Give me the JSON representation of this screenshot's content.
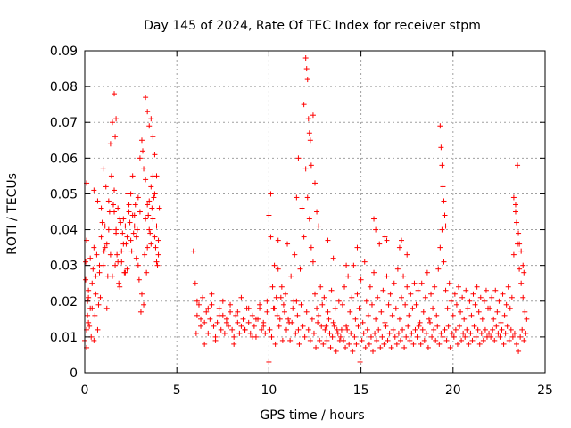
{
  "chart_data": {
    "type": "scatter",
    "title": "Day 145 of 2024, Rate Of TEC Index for receiver stpm",
    "xlabel": "GPS time / hours",
    "ylabel": "ROTI / TECUs",
    "xlim": [
      0,
      25
    ],
    "ylim": [
      0,
      0.09
    ],
    "xticks": [
      0,
      5,
      10,
      15,
      20,
      25
    ],
    "xtick_labels": [
      "0",
      "5",
      "10",
      "15",
      "20",
      "25"
    ],
    "yticks": [
      0,
      0.01,
      0.02,
      0.03,
      0.04,
      0.05,
      0.06,
      0.07,
      0.08,
      0.09
    ],
    "ytick_labels": [
      "0",
      "0.01",
      "0.02",
      "0.03",
      "0.04",
      "0.05",
      "0.06",
      "0.07",
      "0.08",
      "0.09"
    ],
    "grid": true,
    "marker": "+",
    "color": "#ff0000",
    "series": [
      {
        "name": "ROTI",
        "x": [
          0.0,
          0.05,
          0.1,
          0.15,
          0.2,
          0.25,
          0.3,
          0.4,
          0.5,
          0.6,
          0.7,
          0.8,
          0.9,
          1.0,
          1.1,
          1.2,
          1.3,
          1.4,
          1.5,
          1.6,
          1.7,
          1.8,
          1.9,
          2.0,
          2.1,
          2.2,
          2.3,
          2.4,
          2.5,
          2.6,
          2.7,
          2.8,
          2.9,
          3.0,
          3.1,
          3.2,
          3.3,
          3.4,
          3.5,
          3.6,
          3.7,
          3.8,
          3.9,
          4.0,
          4.05,
          0.05,
          0.1,
          0.15,
          0.2,
          0.3,
          0.4,
          0.5,
          0.6,
          0.7,
          0.8,
          0.9,
          1.0,
          1.1,
          1.2,
          1.3,
          1.4,
          1.5,
          1.6,
          1.7,
          1.8,
          1.9,
          2.0,
          2.1,
          2.2,
          2.3,
          2.4,
          2.5,
          2.6,
          2.7,
          2.8,
          2.9,
          3.0,
          3.1,
          3.2,
          3.3,
          3.4,
          3.5,
          3.6,
          3.7,
          3.8,
          3.9,
          4.0,
          0.1,
          0.2,
          0.35,
          0.45,
          0.55,
          0.65,
          0.75,
          0.85,
          0.95,
          1.05,
          1.15,
          1.25,
          1.35,
          1.45,
          1.55,
          1.65,
          1.75,
          1.85,
          1.95,
          2.05,
          2.15,
          2.25,
          2.35,
          2.45,
          2.55,
          2.65,
          2.75,
          2.85,
          2.95,
          3.05,
          3.15,
          3.25,
          3.35,
          3.45,
          3.55,
          3.65,
          3.75,
          3.85,
          3.95,
          0.1,
          0.5,
          1.6,
          1.65,
          1.7,
          3.3,
          3.4,
          3.5,
          3.6,
          3.7,
          3.8,
          3.9,
          5.9,
          6.0,
          6.05,
          6.1,
          6.2,
          6.3,
          6.4,
          6.5,
          6.6,
          6.7,
          6.8,
          6.9,
          7.0,
          7.1,
          7.2,
          7.3,
          7.4,
          7.5,
          7.6,
          7.7,
          7.8,
          7.9,
          8.0,
          8.1,
          8.2,
          8.3,
          8.4,
          8.5,
          8.6,
          8.7,
          8.8,
          8.9,
          9.0,
          9.1,
          9.2,
          9.3,
          9.4,
          9.5,
          9.6,
          9.7,
          9.8,
          9.9,
          6.1,
          6.3,
          6.5,
          6.7,
          6.9,
          7.1,
          7.3,
          7.5,
          7.7,
          7.9,
          8.1,
          8.3,
          8.5,
          8.7,
          8.9,
          9.1,
          9.3,
          9.5,
          9.7,
          9.9,
          10.0,
          10.1,
          10.2,
          10.3,
          10.4,
          10.5,
          10.6,
          10.7,
          10.8,
          10.9,
          11.0,
          11.1,
          11.2,
          11.3,
          11.4,
          11.5,
          11.6,
          11.7,
          11.8,
          11.9,
          12.0,
          12.1,
          12.2,
          12.3,
          12.4,
          12.5,
          12.6,
          12.7,
          12.8,
          12.9,
          13.0,
          13.1,
          13.2,
          13.3,
          13.4,
          13.5,
          13.6,
          13.7,
          13.8,
          13.9,
          10.05,
          10.15,
          10.25,
          10.35,
          10.45,
          10.55,
          10.65,
          10.75,
          10.85,
          10.95,
          11.05,
          11.15,
          11.25,
          11.35,
          11.45,
          11.55,
          11.65,
          11.75,
          11.85,
          11.95,
          12.05,
          12.15,
          12.25,
          12.35,
          12.45,
          12.55,
          12.65,
          12.75,
          12.85,
          12.95,
          13.05,
          13.15,
          13.25,
          13.35,
          13.45,
          13.55,
          13.65,
          13.75,
          13.85,
          13.95,
          10.0,
          10.1,
          10.3,
          10.5,
          11.5,
          11.6,
          11.9,
          12.0,
          12.05,
          12.1,
          12.15,
          12.2,
          12.25,
          12.3,
          12.4,
          12.5,
          12.6,
          12.7,
          13.2,
          13.5,
          14.0,
          14.1,
          14.2,
          14.3,
          14.4,
          14.5,
          14.6,
          14.7,
          14.8,
          14.9,
          15.0,
          15.1,
          15.2,
          15.3,
          15.4,
          15.5,
          15.6,
          15.7,
          15.8,
          15.9,
          16.0,
          16.1,
          16.2,
          16.3,
          16.4,
          16.5,
          16.6,
          16.7,
          16.8,
          16.9,
          17.0,
          17.1,
          17.2,
          17.3,
          17.4,
          17.5,
          17.6,
          17.7,
          17.8,
          17.9,
          14.05,
          14.15,
          14.25,
          14.35,
          14.45,
          14.55,
          14.65,
          14.75,
          14.85,
          14.95,
          15.05,
          15.15,
          15.25,
          15.35,
          15.45,
          15.55,
          15.65,
          15.75,
          15.85,
          15.95,
          16.05,
          16.15,
          16.25,
          16.35,
          16.45,
          16.55,
          16.65,
          16.75,
          16.85,
          16.95,
          17.05,
          17.15,
          17.25,
          17.35,
          17.45,
          17.55,
          17.65,
          17.75,
          17.85,
          17.95,
          14.2,
          14.8,
          15.7,
          15.8,
          16.3,
          16.4,
          17.1,
          17.2,
          17.5,
          18.0,
          18.1,
          18.2,
          18.3,
          18.4,
          18.5,
          18.6,
          18.7,
          18.8,
          18.9,
          19.0,
          19.1,
          19.2,
          19.3,
          19.4,
          19.5,
          19.6,
          19.7,
          19.8,
          19.9,
          20.0,
          20.1,
          20.2,
          20.3,
          20.4,
          20.5,
          20.6,
          20.7,
          20.8,
          20.9,
          21.0,
          21.1,
          21.2,
          21.3,
          21.4,
          21.5,
          21.6,
          21.7,
          21.8,
          21.9,
          18.05,
          18.15,
          18.25,
          18.35,
          18.45,
          18.55,
          18.65,
          18.75,
          18.85,
          18.95,
          19.05,
          19.15,
          19.25,
          19.35,
          19.45,
          19.55,
          19.65,
          19.75,
          19.85,
          19.95,
          20.05,
          20.15,
          20.25,
          20.35,
          20.45,
          20.55,
          20.65,
          20.75,
          20.85,
          20.95,
          21.05,
          21.15,
          21.25,
          21.35,
          21.45,
          21.55,
          21.65,
          21.75,
          21.85,
          21.95,
          19.3,
          19.35,
          19.4,
          19.45,
          19.5,
          19.55,
          19.6,
          22.0,
          22.1,
          22.2,
          22.3,
          22.4,
          22.5,
          22.6,
          22.7,
          22.8,
          22.9,
          23.0,
          23.1,
          23.2,
          23.3,
          23.4,
          23.5,
          23.6,
          23.7,
          23.8,
          23.9,
          24.0,
          22.05,
          22.15,
          22.25,
          22.35,
          22.45,
          22.55,
          22.65,
          22.75,
          22.85,
          22.95,
          23.05,
          23.15,
          23.25,
          23.35,
          23.45,
          23.55,
          23.65,
          23.75,
          23.85,
          23.95,
          23.3,
          23.4,
          23.45,
          23.5,
          23.55,
          23.6,
          23.7,
          23.8,
          23.85
        ],
        "y": [
          0.009,
          0.031,
          0.053,
          0.016,
          0.021,
          0.013,
          0.018,
          0.025,
          0.035,
          0.027,
          0.048,
          0.03,
          0.046,
          0.057,
          0.041,
          0.036,
          0.048,
          0.064,
          0.07,
          0.045,
          0.04,
          0.031,
          0.043,
          0.034,
          0.036,
          0.041,
          0.029,
          0.045,
          0.05,
          0.055,
          0.044,
          0.038,
          0.049,
          0.06,
          0.065,
          0.057,
          0.043,
          0.035,
          0.048,
          0.052,
          0.055,
          0.05,
          0.041,
          0.033,
          0.046,
          0.026,
          0.007,
          0.02,
          0.014,
          0.032,
          0.018,
          0.009,
          0.022,
          0.012,
          0.028,
          0.038,
          0.03,
          0.035,
          0.018,
          0.04,
          0.033,
          0.027,
          0.051,
          0.039,
          0.046,
          0.024,
          0.031,
          0.043,
          0.028,
          0.038,
          0.047,
          0.037,
          0.044,
          0.041,
          0.032,
          0.03,
          0.045,
          0.022,
          0.019,
          0.054,
          0.047,
          0.04,
          0.036,
          0.043,
          0.038,
          0.031,
          0.037,
          0.012,
          0.023,
          0.01,
          0.029,
          0.016,
          0.033,
          0.019,
          0.021,
          0.042,
          0.034,
          0.052,
          0.027,
          0.045,
          0.055,
          0.047,
          0.03,
          0.033,
          0.025,
          0.042,
          0.039,
          0.028,
          0.036,
          0.05,
          0.042,
          0.034,
          0.039,
          0.047,
          0.04,
          0.026,
          0.017,
          0.062,
          0.033,
          0.028,
          0.044,
          0.039,
          0.046,
          0.049,
          0.035,
          0.03,
          0.037,
          0.051,
          0.078,
          0.066,
          0.071,
          0.077,
          0.073,
          0.069,
          0.071,
          0.066,
          0.061,
          0.055,
          0.034,
          0.025,
          0.011,
          0.016,
          0.019,
          0.013,
          0.021,
          0.014,
          0.017,
          0.011,
          0.015,
          0.019,
          0.013,
          0.01,
          0.014,
          0.018,
          0.012,
          0.016,
          0.011,
          0.015,
          0.013,
          0.017,
          0.012,
          0.01,
          0.016,
          0.014,
          0.011,
          0.013,
          0.015,
          0.012,
          0.018,
          0.014,
          0.011,
          0.016,
          0.013,
          0.01,
          0.015,
          0.018,
          0.012,
          0.014,
          0.011,
          0.017,
          0.02,
          0.015,
          0.008,
          0.018,
          0.022,
          0.009,
          0.016,
          0.02,
          0.014,
          0.019,
          0.008,
          0.017,
          0.021,
          0.012,
          0.018,
          0.01,
          0.015,
          0.019,
          0.013,
          0.02,
          0.044,
          0.038,
          0.024,
          0.018,
          0.021,
          0.029,
          0.015,
          0.024,
          0.019,
          0.022,
          0.036,
          0.014,
          0.027,
          0.018,
          0.033,
          0.02,
          0.012,
          0.029,
          0.046,
          0.038,
          0.057,
          0.049,
          0.043,
          0.035,
          0.031,
          0.022,
          0.018,
          0.016,
          0.024,
          0.019,
          0.021,
          0.013,
          0.017,
          0.011,
          0.023,
          0.014,
          0.018,
          0.012,
          0.02,
          0.01,
          0.012,
          0.01,
          0.018,
          0.008,
          0.016,
          0.013,
          0.021,
          0.009,
          0.017,
          0.012,
          0.015,
          0.009,
          0.014,
          0.02,
          0.011,
          0.016,
          0.008,
          0.019,
          0.013,
          0.01,
          0.017,
          0.012,
          0.009,
          0.015,
          0.011,
          0.007,
          0.014,
          0.009,
          0.013,
          0.008,
          0.012,
          0.009,
          0.015,
          0.007,
          0.01,
          0.013,
          0.006,
          0.011,
          0.009,
          0.012,
          0.003,
          0.05,
          0.03,
          0.037,
          0.049,
          0.06,
          0.075,
          0.088,
          0.085,
          0.082,
          0.071,
          0.067,
          0.065,
          0.058,
          0.072,
          0.053,
          0.045,
          0.041,
          0.037,
          0.032,
          0.019,
          0.024,
          0.013,
          0.027,
          0.017,
          0.021,
          0.03,
          0.015,
          0.022,
          0.018,
          0.026,
          0.014,
          0.031,
          0.02,
          0.016,
          0.024,
          0.019,
          0.028,
          0.015,
          0.021,
          0.036,
          0.017,
          0.023,
          0.014,
          0.027,
          0.019,
          0.022,
          0.016,
          0.025,
          0.018,
          0.029,
          0.015,
          0.021,
          0.027,
          0.019,
          0.024,
          0.016,
          0.022,
          0.018,
          0.025,
          0.009,
          0.007,
          0.012,
          0.008,
          0.011,
          0.006,
          0.01,
          0.008,
          0.013,
          0.003,
          0.009,
          0.011,
          0.007,
          0.012,
          0.008,
          0.01,
          0.006,
          0.011,
          0.009,
          0.012,
          0.007,
          0.01,
          0.008,
          0.013,
          0.009,
          0.011,
          0.007,
          0.012,
          0.01,
          0.008,
          0.011,
          0.009,
          0.012,
          0.007,
          0.01,
          0.013,
          0.009,
          0.011,
          0.008,
          0.012,
          0.03,
          0.035,
          0.043,
          0.04,
          0.038,
          0.037,
          0.035,
          0.037,
          0.033,
          0.019,
          0.023,
          0.014,
          0.025,
          0.017,
          0.021,
          0.028,
          0.015,
          0.022,
          0.018,
          0.024,
          0.016,
          0.029,
          0.035,
          0.04,
          0.031,
          0.023,
          0.018,
          0.025,
          0.02,
          0.016,
          0.022,
          0.019,
          0.024,
          0.017,
          0.021,
          0.015,
          0.023,
          0.018,
          0.02,
          0.016,
          0.022,
          0.019,
          0.024,
          0.017,
          0.021,
          0.015,
          0.02,
          0.023,
          0.018,
          0.01,
          0.013,
          0.008,
          0.012,
          0.009,
          0.011,
          0.007,
          0.014,
          0.01,
          0.012,
          0.009,
          0.013,
          0.008,
          0.011,
          0.01,
          0.012,
          0.009,
          0.013,
          0.007,
          0.011,
          0.01,
          0.012,
          0.008,
          0.013,
          0.009,
          0.011,
          0.01,
          0.012,
          0.008,
          0.011,
          0.009,
          0.013,
          0.01,
          0.012,
          0.008,
          0.011,
          0.009,
          0.012,
          0.01,
          0.011,
          0.069,
          0.063,
          0.058,
          0.052,
          0.048,
          0.044,
          0.041,
          0.018,
          0.021,
          0.015,
          0.023,
          0.017,
          0.02,
          0.014,
          0.022,
          0.016,
          0.019,
          0.024,
          0.018,
          0.021,
          0.033,
          0.045,
          0.036,
          0.029,
          0.025,
          0.021,
          0.017,
          0.015,
          0.01,
          0.012,
          0.009,
          0.013,
          0.011,
          0.01,
          0.012,
          0.008,
          0.011,
          0.013,
          0.009,
          0.012,
          0.01,
          0.011,
          0.008,
          0.006,
          0.01,
          0.012,
          0.009,
          0.011,
          0.049,
          0.047,
          0.042,
          0.058,
          0.039,
          0.036,
          0.034,
          0.03,
          0.028
        ]
      }
    ]
  }
}
